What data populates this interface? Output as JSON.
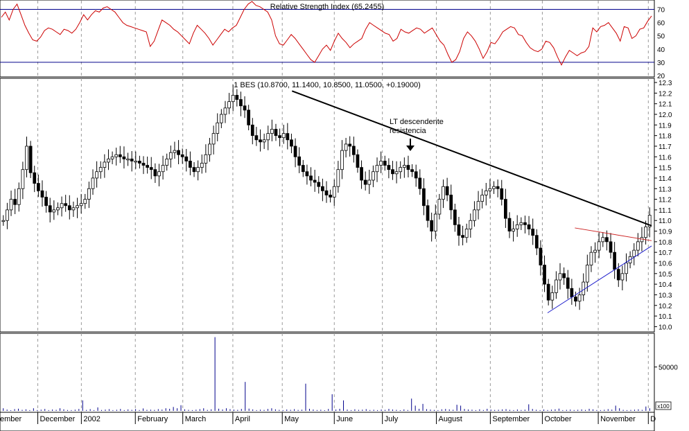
{
  "chart_data": [
    {
      "type": "line",
      "title": "Relative Strength Index (65.2455)",
      "ylim": [
        20,
        75
      ],
      "yticks": [
        70,
        60,
        50,
        40,
        30,
        20
      ],
      "levels": [
        70,
        30
      ],
      "series": [
        {
          "values": [
            64,
            68,
            62,
            70,
            74,
            66,
            58,
            52,
            47,
            46,
            49,
            54,
            56,
            55,
            53,
            51,
            55,
            54,
            52,
            55,
            60,
            66,
            62,
            66,
            69,
            68,
            71,
            72,
            70,
            68,
            64,
            60,
            58,
            57,
            56,
            55,
            54,
            53,
            42,
            46,
            54,
            62,
            60,
            58,
            55,
            53,
            50,
            47,
            44,
            52,
            58,
            55,
            52,
            48,
            43,
            47,
            51,
            55,
            53,
            56,
            58,
            64,
            70,
            74,
            76,
            73,
            72,
            70,
            68,
            62,
            50,
            44,
            43,
            47,
            51,
            48,
            44,
            40,
            36,
            32,
            30,
            35,
            40,
            43,
            39,
            46,
            52,
            48,
            45,
            41,
            44,
            46,
            48,
            55,
            60,
            58,
            56,
            54,
            52,
            51,
            46,
            48,
            55,
            53,
            52,
            54,
            56,
            55,
            52,
            54,
            56,
            51,
            46,
            43,
            36,
            30,
            32,
            38,
            48,
            53,
            50,
            46,
            40,
            33,
            38,
            45,
            44,
            48,
            53,
            55,
            57,
            56,
            51,
            50,
            45,
            41,
            39,
            38,
            40,
            46,
            45,
            41,
            34,
            28,
            34,
            39,
            37,
            35,
            37,
            38,
            42,
            56,
            53,
            57,
            58,
            60,
            56,
            52,
            46,
            57,
            56,
            48,
            50,
            55,
            56,
            61,
            65
          ]
        }
      ]
    },
    {
      "type": "candlestick",
      "title": "1 BES (10.8700, 11.1400, 10.8500, 11.0500, +0.19000)",
      "ylim": [
        9.97,
        12.32
      ],
      "yticks": [
        "12.3",
        "12.2",
        "12.1",
        "12.0",
        "11.9",
        "11.8",
        "11.7",
        "11.6",
        "11.5",
        "11.4",
        "11.3",
        "11.2",
        "11.1",
        "11.0",
        "10.9",
        "10.8",
        "10.7",
        "10.6",
        "10.5",
        "10.4",
        "10.3",
        "10.2",
        "10.1",
        "10.0"
      ],
      "series": [
        {
          "values": [
            11.0,
            11.1,
            11.2,
            11.15,
            11.3,
            11.48,
            11.7,
            11.45,
            11.35,
            11.28,
            11.22,
            11.14,
            11.08,
            11.1,
            11.12,
            11.16,
            11.14,
            11.1,
            11.12,
            11.14,
            11.16,
            11.2,
            11.3,
            11.4,
            11.46,
            11.5,
            11.55,
            11.58,
            11.6,
            11.62,
            11.6,
            11.58,
            11.58,
            11.56,
            11.56,
            11.54,
            11.52,
            11.5,
            11.48,
            11.42,
            11.46,
            11.52,
            11.58,
            11.64,
            11.66,
            11.62,
            11.6,
            11.56,
            11.5,
            11.46,
            11.5,
            11.54,
            11.62,
            11.72,
            11.82,
            11.92,
            12.0,
            12.06,
            12.12,
            12.18,
            12.14,
            12.08,
            12.04,
            11.9,
            11.8,
            11.76,
            11.74,
            11.76,
            11.82,
            11.86,
            11.8,
            11.78,
            11.82,
            11.76,
            11.7,
            11.6,
            11.52,
            11.46,
            11.42,
            11.38,
            11.36,
            11.32,
            11.28,
            11.24,
            11.22,
            11.32,
            11.48,
            11.66,
            11.72,
            11.7,
            11.62,
            11.5,
            11.38,
            11.34,
            11.38,
            11.46,
            11.52,
            11.56,
            11.52,
            11.48,
            11.44,
            11.46,
            11.5,
            11.52,
            11.48,
            11.46,
            11.4,
            11.3,
            11.14,
            11.0,
            10.9,
            11.06,
            11.2,
            11.32,
            11.24,
            11.1,
            10.96,
            10.86,
            10.84,
            10.92,
            11.0,
            11.1,
            11.18,
            11.24,
            11.28,
            11.3,
            11.32,
            11.3,
            11.2,
            11.02,
            10.9,
            10.92,
            10.96,
            10.98,
            10.96,
            10.92,
            10.86,
            10.74,
            10.58,
            10.4,
            10.25,
            10.32,
            10.44,
            10.5,
            10.46,
            10.36,
            10.28,
            10.24,
            10.3,
            10.42,
            10.58,
            10.7,
            10.72,
            10.8,
            10.84,
            10.8,
            10.7,
            10.54,
            10.44,
            10.5,
            10.6,
            10.66,
            10.72,
            10.8,
            10.84,
            10.94,
            11.05
          ]
        }
      ],
      "trendlines": [
        {
          "color": "#000000",
          "points": [
            [
              0.447,
              12.22
            ],
            [
              1.0,
              10.95
            ]
          ]
        },
        {
          "color": "#000000",
          "points": [
            [
              0.84,
              10.13
            ],
            [
              1.0,
              10.76
            ]
          ]
        },
        {
          "color": "#000000",
          "points": [
            [
              0.882,
              10.93
            ],
            [
              1.0,
              10.81
            ]
          ]
        }
      ],
      "annotations": [
        {
          "text": "LT descendente"
        },
        {
          "text": "resistencia"
        }
      ]
    },
    {
      "type": "bar",
      "title": "",
      "ylim": [
        0,
        86000
      ],
      "yticks": [
        "50000"
      ],
      "unit_box": "x100",
      "values": [
        3000,
        1500,
        800,
        2000,
        2500,
        1200,
        1800,
        900,
        3000,
        1000,
        1400,
        2200,
        900,
        1600,
        1200,
        3000,
        1800,
        1000,
        900,
        1400,
        2200,
        12000,
        1100,
        2000,
        900,
        4000,
        1000,
        1500,
        2000,
        900,
        1300,
        2200,
        900,
        1700,
        1200,
        2100,
        1000,
        2800,
        1200,
        1400,
        1100,
        2000,
        1500,
        3000,
        2400,
        4500,
        3000,
        6500,
        1800,
        1200,
        900,
        1400,
        2000,
        3000,
        1100,
        1800,
        84000,
        2500,
        1600,
        3000,
        2000,
        1500,
        1200,
        2200,
        33000,
        2600,
        1700,
        900,
        1400,
        1100,
        2200,
        3000,
        1800,
        1200,
        900,
        1600,
        1200,
        2000,
        1100,
        1400,
        31000,
        2400,
        1600,
        1000,
        1300,
        800,
        2200,
        19000,
        1600,
        2400,
        12000,
        1500,
        900,
        1800,
        1200,
        1400,
        2000,
        1000,
        1300,
        900,
        1600,
        1200,
        2300,
        1600,
        1200,
        800,
        1700,
        1000,
        14000,
        6000,
        2400,
        8000,
        2000,
        1500,
        1100,
        900,
        1800,
        2200,
        1700,
        1300,
        7000,
        6000,
        2200,
        1600,
        1400,
        900,
        1800,
        1000,
        2400,
        1500,
        1100,
        1300,
        1700,
        2000,
        1200,
        900,
        1600,
        1000,
        1400,
        7500,
        2200,
        1300,
        900,
        1600,
        1000,
        1400,
        1800,
        2600,
        900,
        1200,
        1500,
        1000,
        1300,
        1700,
        1100,
        2400,
        1800,
        1000,
        900,
        1300,
        2000,
        1500,
        6000,
        3000,
        1200,
        900,
        1100,
        1400,
        1800,
        1200,
        5000,
        3000
      ]
    }
  ],
  "x_axis": {
    "labels": [
      "ember",
      "December",
      "2002",
      "February",
      "March",
      "April",
      "May",
      "June",
      "July",
      "August",
      "September",
      "October",
      "November",
      "D"
    ]
  }
}
